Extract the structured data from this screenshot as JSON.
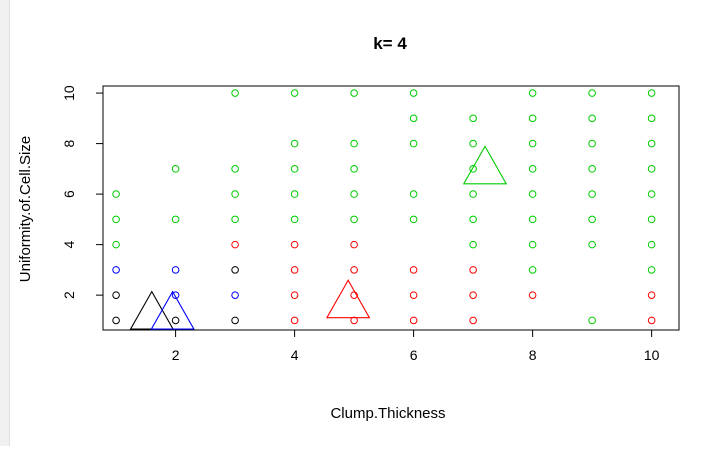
{
  "chart_data": {
    "type": "scatter",
    "title": "k= 4",
    "xlabel": "Clump.Thickness",
    "ylabel": "Uniformity.of.Cell.Size",
    "xlim": [
      0.78,
      10.46
    ],
    "ylim": [
      0.62,
      10.28
    ],
    "xticks": [
      2,
      4,
      6,
      8,
      10
    ],
    "yticks": [
      2,
      4,
      6,
      8,
      10
    ],
    "grid": false,
    "legend": "none",
    "series": [
      {
        "color": "#000000",
        "points": [
          [
            1,
            1
          ],
          [
            1,
            2
          ],
          [
            2,
            1
          ],
          [
            3,
            1
          ],
          [
            3,
            3
          ]
        ]
      },
      {
        "color": "#0000ff",
        "points": [
          [
            1,
            3
          ],
          [
            2,
            2
          ],
          [
            2,
            3
          ],
          [
            3,
            2
          ]
        ]
      },
      {
        "color": "#ff0000",
        "points": [
          [
            3,
            4
          ],
          [
            4,
            1
          ],
          [
            4,
            2
          ],
          [
            4,
            3
          ],
          [
            4,
            4
          ],
          [
            5,
            1
          ],
          [
            5,
            2
          ],
          [
            5,
            3
          ],
          [
            5,
            4
          ],
          [
            6,
            1
          ],
          [
            6,
            2
          ],
          [
            6,
            3
          ],
          [
            7,
            1
          ],
          [
            7,
            2
          ],
          [
            7,
            3
          ],
          [
            8,
            2
          ],
          [
            10,
            1
          ],
          [
            10,
            2
          ]
        ]
      },
      {
        "color": "#00cd00",
        "points": [
          [
            1,
            4
          ],
          [
            1,
            5
          ],
          [
            1,
            6
          ],
          [
            2,
            5
          ],
          [
            2,
            7
          ],
          [
            3,
            5
          ],
          [
            3,
            6
          ],
          [
            3,
            7
          ],
          [
            3,
            10
          ],
          [
            4,
            5
          ],
          [
            4,
            6
          ],
          [
            4,
            7
          ],
          [
            4,
            8
          ],
          [
            4,
            10
          ],
          [
            5,
            5
          ],
          [
            5,
            6
          ],
          [
            5,
            7
          ],
          [
            5,
            8
          ],
          [
            5,
            10
          ],
          [
            6,
            5
          ],
          [
            6,
            6
          ],
          [
            6,
            8
          ],
          [
            6,
            9
          ],
          [
            6,
            10
          ],
          [
            7,
            4
          ],
          [
            7,
            5
          ],
          [
            7,
            6
          ],
          [
            7,
            7
          ],
          [
            7,
            8
          ],
          [
            7,
            9
          ],
          [
            8,
            3
          ],
          [
            8,
            4
          ],
          [
            8,
            5
          ],
          [
            8,
            6
          ],
          [
            8,
            7
          ],
          [
            8,
            8
          ],
          [
            8,
            9
          ],
          [
            8,
            10
          ],
          [
            9,
            1
          ],
          [
            9,
            4
          ],
          [
            9,
            5
          ],
          [
            9,
            6
          ],
          [
            9,
            7
          ],
          [
            9,
            8
          ],
          [
            9,
            9
          ],
          [
            9,
            10
          ],
          [
            10,
            3
          ],
          [
            10,
            4
          ],
          [
            10,
            5
          ],
          [
            10,
            6
          ],
          [
            10,
            7
          ],
          [
            10,
            8
          ],
          [
            10,
            9
          ],
          [
            10,
            10
          ]
        ]
      }
    ],
    "centers": [
      {
        "color": "#000000",
        "x": 1.6,
        "y": 1.2
      },
      {
        "color": "#0000ff",
        "x": 1.95,
        "y": 1.2
      },
      {
        "color": "#ff0000",
        "x": 4.9,
        "y": 1.65
      },
      {
        "color": "#00cd00",
        "x": 7.2,
        "y": 6.95
      }
    ]
  }
}
